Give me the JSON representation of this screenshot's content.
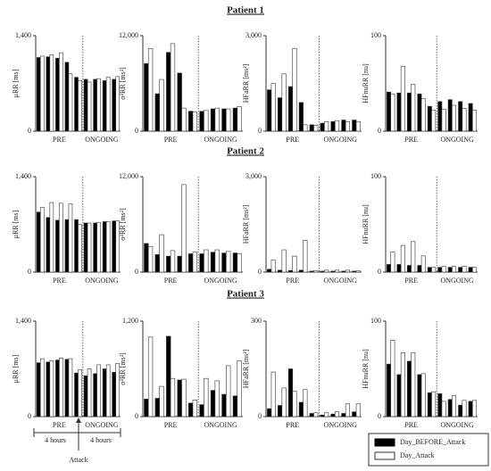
{
  "row_titles": [
    "Patient 1",
    "Patient 2",
    "Patient 3"
  ],
  "group_labels": [
    "PRE",
    "ONGOING"
  ],
  "annotations": {
    "left": "4 hours",
    "right": "4 hours",
    "event": "Attack"
  },
  "chart_data": [
    {
      "type": "bar",
      "ylabel": "μRR [ms]",
      "categories": [
        null,
        null,
        null,
        null,
        null,
        null,
        null,
        null,
        null
      ],
      "ylim": [
        0,
        1400
      ],
      "yticks": [
        0,
        {
          "value": 1400,
          "label": "1,400"
        }
      ],
      "series": [
        {
          "name": "Day_BEFORE_Attack",
          "color": "#000000",
          "values": [
            1080,
            1090,
            1070,
            1010,
            790,
            760,
            760,
            740,
            760
          ]
        },
        {
          "name": "Day_Attack",
          "color": "#ffffff",
          "values": [
            1100,
            1120,
            1150,
            840,
            740,
            720,
            770,
            790,
            800
          ]
        }
      ]
    },
    {
      "type": "bar",
      "ylabel": "σ²RR [ms²]",
      "categories": [
        null,
        null,
        null,
        null,
        null,
        null,
        null,
        null,
        null
      ],
      "ylim": [
        0,
        12000
      ],
      "yticks": [
        0,
        {
          "value": 12000,
          "label": "12,000"
        }
      ],
      "series": [
        {
          "name": "Day_BEFORE_Attack",
          "color": "#000000",
          "values": [
            8500,
            4700,
            9900,
            7300,
            2500,
            2500,
            2800,
            2800,
            2900
          ]
        },
        {
          "name": "Day_Attack",
          "color": "#ffffff",
          "values": [
            10400,
            6500,
            11000,
            2900,
            2400,
            2600,
            2900,
            2800,
            3100
          ]
        }
      ]
    },
    {
      "type": "bar",
      "ylabel": "HFaRR [ms²]",
      "categories": [
        null,
        null,
        null,
        null,
        null,
        null,
        null,
        null,
        null
      ],
      "ylim": [
        0,
        3000
      ],
      "yticks": [
        0,
        {
          "value": 3000,
          "label": "3,000"
        }
      ],
      "series": [
        {
          "name": "Day_BEFORE_Attack",
          "color": "#000000",
          "values": [
            1300,
            1050,
            1400,
            900,
            200,
            250,
            300,
            350,
            350
          ]
        },
        {
          "name": "Day_Attack",
          "color": "#ffffff",
          "values": [
            1500,
            1800,
            2600,
            200,
            180,
            300,
            330,
            300,
            300
          ]
        }
      ]
    },
    {
      "type": "bar",
      "ylabel": "HFnuRR [nu]",
      "categories": [
        null,
        null,
        null,
        null,
        null,
        null,
        null,
        null,
        null
      ],
      "ylim": [
        0,
        100
      ],
      "yticks": [
        0,
        100
      ],
      "series": [
        {
          "name": "Day_BEFORE_Attack",
          "color": "#000000",
          "values": [
            41,
            40,
            40,
            39,
            26,
            31,
            33,
            31,
            29
          ]
        },
        {
          "name": "Day_Attack",
          "color": "#ffffff",
          "values": [
            39,
            68,
            49,
            34,
            22,
            23,
            27,
            24,
            22
          ]
        }
      ]
    },
    {
      "type": "bar",
      "ylabel": "μRR [ms]",
      "categories": [
        null,
        null,
        null,
        null,
        null,
        null,
        null,
        null,
        null
      ],
      "ylim": [
        0,
        1400
      ],
      "yticks": [
        0,
        {
          "value": 1400,
          "label": "1,400"
        }
      ],
      "series": [
        {
          "name": "Day_BEFORE_Attack",
          "color": "#000000",
          "values": [
            880,
            800,
            760,
            770,
            770,
            720,
            720,
            740,
            750
          ]
        },
        {
          "name": "Day_Attack",
          "color": "#ffffff",
          "values": [
            950,
            1020,
            1010,
            1000,
            700,
            720,
            730,
            740,
            750
          ]
        }
      ]
    },
    {
      "type": "bar",
      "ylabel": "σ²RR [ms²]",
      "categories": [
        null,
        null,
        null,
        null,
        null,
        null,
        null,
        null,
        null
      ],
      "ylim": [
        0,
        12000
      ],
      "yticks": [
        0,
        {
          "value": 12000,
          "label": "12,000"
        }
      ],
      "series": [
        {
          "name": "Day_BEFORE_Attack",
          "color": "#000000",
          "values": [
            3600,
            2200,
            2000,
            2000,
            2300,
            2300,
            2500,
            2400,
            2400
          ]
        },
        {
          "name": "Day_Attack",
          "color": "#ffffff",
          "values": [
            3200,
            4700,
            2700,
            11000,
            2500,
            2800,
            2800,
            2600,
            2300
          ]
        }
      ]
    },
    {
      "type": "bar",
      "ylabel": "HFaRR [ms²]",
      "categories": [
        null,
        null,
        null,
        null,
        null,
        null,
        null,
        null,
        null
      ],
      "ylim": [
        0,
        3000
      ],
      "yticks": [
        0,
        {
          "value": 3000,
          "label": "3,000"
        }
      ],
      "series": [
        {
          "name": "Day_BEFORE_Attack",
          "color": "#000000",
          "values": [
            90,
            60,
            50,
            60,
            30,
            30,
            30,
            30,
            30
          ]
        },
        {
          "name": "Day_Attack",
          "color": "#ffffff",
          "values": [
            380,
            700,
            500,
            1000,
            50,
            60,
            60,
            60,
            40
          ]
        }
      ]
    },
    {
      "type": "bar",
      "ylabel": "HFnuRR [nu]",
      "categories": [
        null,
        null,
        null,
        null,
        null,
        null,
        null,
        null,
        null
      ],
      "ylim": [
        0,
        100
      ],
      "yticks": [
        0,
        100
      ],
      "series": [
        {
          "name": "Day_BEFORE_Attack",
          "color": "#000000",
          "values": [
            8,
            8,
            7,
            7,
            5,
            5,
            5,
            5,
            5
          ]
        },
        {
          "name": "Day_Attack",
          "color": "#ffffff",
          "values": [
            21,
            28,
            32,
            17,
            5,
            6,
            6,
            6,
            5
          ]
        }
      ]
    },
    {
      "type": "bar",
      "ylabel": "μRR [ms]",
      "categories": [
        null,
        null,
        null,
        null,
        null,
        null,
        null,
        null,
        null
      ],
      "ylim": [
        0,
        1400
      ],
      "yticks": [
        0,
        {
          "value": 1400,
          "label": "1,400"
        }
      ],
      "series": [
        {
          "name": "Day_BEFORE_Attack",
          "color": "#000000",
          "values": [
            790,
            800,
            830,
            840,
            640,
            600,
            630,
            700,
            650
          ]
        },
        {
          "name": "Day_Attack",
          "color": "#ffffff",
          "values": [
            850,
            820,
            860,
            850,
            690,
            700,
            760,
            760,
            780
          ]
        }
      ]
    },
    {
      "type": "bar",
      "ylabel": "σ²RR [ms²]",
      "categories": [
        null,
        null,
        null,
        null,
        null,
        null,
        null,
        null,
        null
      ],
      "ylim": [
        0,
        1200
      ],
      "yticks": [
        0,
        {
          "value": 1200,
          "label": "1,200"
        }
      ],
      "series": [
        {
          "name": "Day_BEFORE_Attack",
          "color": "#000000",
          "values": [
            220,
            230,
            1010,
            460,
            170,
            150,
            330,
            280,
            260
          ]
        },
        {
          "name": "Day_Attack",
          "color": "#ffffff",
          "values": [
            1000,
            380,
            480,
            470,
            210,
            480,
            450,
            640,
            700
          ]
        }
      ]
    },
    {
      "type": "bar",
      "ylabel": "HFaRR [ms²]",
      "categories": [
        null,
        null,
        null,
        null,
        null,
        null,
        null,
        null,
        null
      ],
      "ylim": [
        0,
        300
      ],
      "yticks": [
        0,
        300
      ],
      "series": [
        {
          "name": "Day_BEFORE_Attack",
          "color": "#000000",
          "values": [
            25,
            35,
            150,
            45,
            10,
            5,
            8,
            10,
            15
          ]
        },
        {
          "name": "Day_Attack",
          "color": "#ffffff",
          "values": [
            140,
            90,
            80,
            85,
            12,
            12,
            15,
            40,
            40
          ]
        }
      ]
    },
    {
      "type": "bar",
      "ylabel": "HFnuRR [nu]",
      "categories": [
        null,
        null,
        null,
        null,
        null,
        null,
        null,
        null,
        null
      ],
      "ylim": [
        0,
        100
      ],
      "yticks": [
        0,
        100
      ],
      "series": [
        {
          "name": "Day_BEFORE_Attack",
          "color": "#000000",
          "values": [
            55,
            44,
            58,
            44,
            25,
            24,
            18,
            12,
            16
          ]
        },
        {
          "name": "Day_Attack",
          "color": "#ffffff",
          "values": [
            80,
            67,
            67,
            45,
            26,
            16,
            22,
            17,
            17
          ]
        }
      ]
    }
  ]
}
